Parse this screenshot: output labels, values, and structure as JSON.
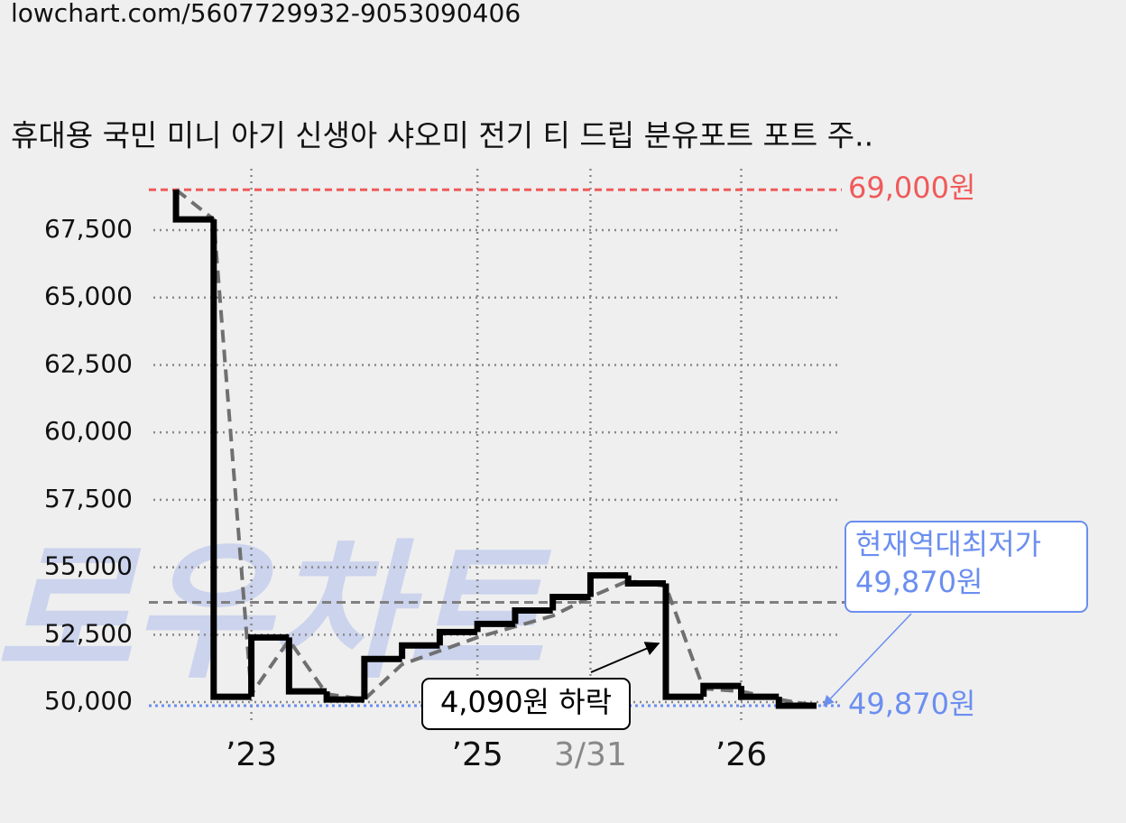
{
  "url": "lowchart.com/5607729932-9053090406",
  "watermark": "로우차트",
  "chart_data": {
    "type": "step-line",
    "title": "휴대용 국민 미니 아기 신생아 샤오미 전기 티 드립 분유포트 포트 주..",
    "xlim": [
      -0.6,
      17.67
    ],
    "ylim": [
      49500,
      70000
    ],
    "xticks": [
      {
        "value": 2,
        "label": "’23"
      },
      {
        "value": 8,
        "label": "’25"
      },
      {
        "value": 11,
        "label": "3/31"
      },
      {
        "value": 15,
        "label": "’26"
      }
    ],
    "yticks": [
      {
        "value": 50000,
        "label": "50,000"
      },
      {
        "value": 52500,
        "label": "52,500"
      },
      {
        "value": 55000,
        "label": "55,000"
      },
      {
        "value": 57500,
        "label": "57,500"
      },
      {
        "value": 60000,
        "label": "60,000"
      },
      {
        "value": 62500,
        "label": "62,500"
      },
      {
        "value": 65000,
        "label": "65,000"
      },
      {
        "value": 67500,
        "label": "67,500"
      }
    ],
    "grid": true,
    "series": [
      {
        "color": "#000000",
        "style": "step",
        "x": [
          0,
          0,
          1,
          2,
          3,
          4,
          5,
          6,
          7,
          8,
          9,
          10,
          11,
          12,
          13,
          14,
          15,
          16,
          17
        ],
        "values": [
          69000,
          67900,
          50200,
          52400,
          50400,
          50100,
          51600,
          52100,
          52600,
          52900,
          53400,
          53900,
          54700,
          54400,
          50200,
          50600,
          50200,
          49870,
          49870
        ]
      },
      {
        "color": "#707070",
        "style": "dashed",
        "x": [
          0,
          1,
          2,
          3,
          4,
          5,
          6,
          7,
          8,
          9,
          10,
          11,
          12,
          13,
          14,
          15,
          16,
          17
        ],
        "values": [
          69000,
          67900,
          50300,
          52300,
          50300,
          50100,
          51400,
          51900,
          52400,
          52800,
          53200,
          53900,
          54500,
          54300,
          50500,
          50400,
          50100,
          49870
        ]
      }
    ],
    "max_line": {
      "value": 69000,
      "label": "69,000원",
      "color": "#f05a5a"
    },
    "min_line": {
      "value": 49870,
      "label": "49,870원",
      "color": "#6b8ef0"
    },
    "average_line": {
      "value": 53700,
      "color": "#808080"
    },
    "drop_annotation": {
      "label": "4,090원 하락",
      "x": 13
    },
    "current_annotation": {
      "lines": [
        "현재역대최저가",
        "49,870원"
      ],
      "color": "#6b8ef0"
    }
  }
}
